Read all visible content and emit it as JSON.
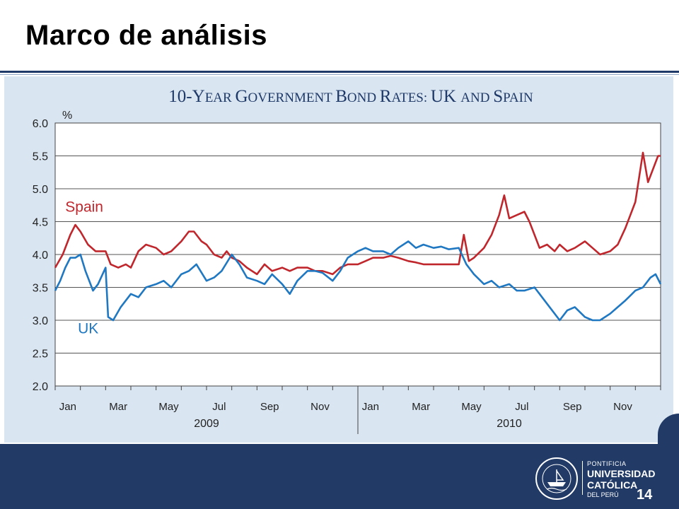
{
  "slide": {
    "title": "Marco de análisis",
    "page_number": "14"
  },
  "logo": {
    "seal_text": "ET LUX IN TENEBRIS LUCET",
    "line1": "PONTIFICIA",
    "line2": "UNIVERSIDAD",
    "line3": "CATÓLICA",
    "line4": "DEL PERÚ"
  },
  "colors": {
    "spain": "#c0272d",
    "uk": "#1f78c1",
    "title_blue": "#1f3a68",
    "panel": "#d9e5f1",
    "footer": "#213a66"
  },
  "chart_data": {
    "type": "line",
    "title_parts": [
      {
        "big": "10-Y",
        "small": "EAR "
      },
      {
        "big": "G",
        "small": "OVERNMENT "
      },
      {
        "big": "B",
        "small": "OND "
      },
      {
        "big": "R",
        "small": "ATES: "
      },
      {
        "big": "UK ",
        "small": "AND "
      },
      {
        "big": "S",
        "small": "PAIN"
      }
    ],
    "ylabel": "%",
    "ylim": [
      2.0,
      6.0
    ],
    "yticks": [
      "2.0",
      "2.5",
      "3.0",
      "3.5",
      "4.0",
      "4.5",
      "5.0",
      "5.5",
      "6.0"
    ],
    "grid": true,
    "x_range": [
      0,
      24
    ],
    "month_ticks": [
      {
        "label": "Jan",
        "x": 0.5
      },
      {
        "label": "Mar",
        "x": 2.5
      },
      {
        "label": "May",
        "x": 4.5
      },
      {
        "label": "Jul",
        "x": 6.5
      },
      {
        "label": "Sep",
        "x": 8.5
      },
      {
        "label": "Nov",
        "x": 10.5
      },
      {
        "label": "Jan",
        "x": 12.5
      },
      {
        "label": "Mar",
        "x": 14.5
      },
      {
        "label": "May",
        "x": 16.5
      },
      {
        "label": "Jul",
        "x": 18.5
      },
      {
        "label": "Sep",
        "x": 20.5
      },
      {
        "label": "Nov",
        "x": 22.5
      }
    ],
    "years": [
      {
        "label": "2009",
        "x": 6.0
      },
      {
        "label": "2010",
        "x": 18.0
      }
    ],
    "year_divider_x": 12.0,
    "series": [
      {
        "name": "Spain",
        "label_pos": {
          "x": 0.4,
          "y": 4.65
        },
        "points": [
          [
            0,
            3.8
          ],
          [
            0.3,
            4.0
          ],
          [
            0.6,
            4.3
          ],
          [
            0.8,
            4.45
          ],
          [
            1.0,
            4.35
          ],
          [
            1.3,
            4.15
          ],
          [
            1.6,
            4.05
          ],
          [
            2.0,
            4.05
          ],
          [
            2.2,
            3.85
          ],
          [
            2.5,
            3.8
          ],
          [
            2.8,
            3.85
          ],
          [
            3.0,
            3.8
          ],
          [
            3.3,
            4.05
          ],
          [
            3.6,
            4.15
          ],
          [
            4.0,
            4.1
          ],
          [
            4.3,
            4.0
          ],
          [
            4.6,
            4.05
          ],
          [
            5.0,
            4.2
          ],
          [
            5.3,
            4.35
          ],
          [
            5.5,
            4.35
          ],
          [
            5.8,
            4.2
          ],
          [
            6.0,
            4.15
          ],
          [
            6.3,
            4.0
          ],
          [
            6.6,
            3.95
          ],
          [
            6.8,
            4.05
          ],
          [
            7.0,
            3.95
          ],
          [
            7.3,
            3.9
          ],
          [
            7.6,
            3.8
          ],
          [
            8.0,
            3.7
          ],
          [
            8.3,
            3.85
          ],
          [
            8.6,
            3.75
          ],
          [
            9.0,
            3.8
          ],
          [
            9.3,
            3.75
          ],
          [
            9.6,
            3.8
          ],
          [
            10.0,
            3.8
          ],
          [
            10.3,
            3.75
          ],
          [
            10.6,
            3.75
          ],
          [
            11.0,
            3.7
          ],
          [
            11.3,
            3.8
          ],
          [
            11.6,
            3.85
          ],
          [
            12.0,
            3.85
          ],
          [
            12.3,
            3.9
          ],
          [
            12.6,
            3.95
          ],
          [
            13.0,
            3.95
          ],
          [
            13.3,
            3.98
          ],
          [
            13.6,
            3.95
          ],
          [
            14.0,
            3.9
          ],
          [
            14.3,
            3.88
          ],
          [
            14.6,
            3.85
          ],
          [
            15.0,
            3.85
          ],
          [
            15.3,
            3.85
          ],
          [
            15.6,
            3.85
          ],
          [
            16.0,
            3.85
          ],
          [
            16.2,
            4.3
          ],
          [
            16.4,
            3.9
          ],
          [
            16.6,
            3.95
          ],
          [
            17.0,
            4.1
          ],
          [
            17.3,
            4.3
          ],
          [
            17.6,
            4.6
          ],
          [
            17.8,
            4.9
          ],
          [
            18.0,
            4.55
          ],
          [
            18.3,
            4.6
          ],
          [
            18.6,
            4.65
          ],
          [
            18.8,
            4.5
          ],
          [
            19.0,
            4.3
          ],
          [
            19.2,
            4.1
          ],
          [
            19.5,
            4.15
          ],
          [
            19.8,
            4.05
          ],
          [
            20.0,
            4.15
          ],
          [
            20.3,
            4.05
          ],
          [
            20.6,
            4.1
          ],
          [
            21.0,
            4.2
          ],
          [
            21.3,
            4.1
          ],
          [
            21.6,
            4.0
          ],
          [
            22.0,
            4.05
          ],
          [
            22.3,
            4.15
          ],
          [
            22.6,
            4.4
          ],
          [
            23.0,
            4.8
          ],
          [
            23.3,
            5.55
          ],
          [
            23.5,
            5.1
          ],
          [
            23.7,
            5.3
          ],
          [
            23.9,
            5.5
          ],
          [
            24.0,
            5.5
          ]
        ]
      },
      {
        "name": "UK",
        "label_pos": {
          "x": 0.9,
          "y": 2.8
        },
        "points": [
          [
            0,
            3.45
          ],
          [
            0.2,
            3.6
          ],
          [
            0.4,
            3.8
          ],
          [
            0.6,
            3.95
          ],
          [
            0.8,
            3.95
          ],
          [
            1.0,
            4.0
          ],
          [
            1.2,
            3.75
          ],
          [
            1.5,
            3.45
          ],
          [
            1.7,
            3.55
          ],
          [
            2.0,
            3.8
          ],
          [
            2.1,
            3.05
          ],
          [
            2.3,
            3.0
          ],
          [
            2.6,
            3.2
          ],
          [
            3.0,
            3.4
          ],
          [
            3.3,
            3.35
          ],
          [
            3.6,
            3.5
          ],
          [
            4.0,
            3.55
          ],
          [
            4.3,
            3.6
          ],
          [
            4.6,
            3.5
          ],
          [
            5.0,
            3.7
          ],
          [
            5.3,
            3.75
          ],
          [
            5.6,
            3.85
          ],
          [
            6.0,
            3.6
          ],
          [
            6.3,
            3.65
          ],
          [
            6.6,
            3.75
          ],
          [
            7.0,
            4.0
          ],
          [
            7.3,
            3.85
          ],
          [
            7.6,
            3.65
          ],
          [
            8.0,
            3.6
          ],
          [
            8.3,
            3.55
          ],
          [
            8.6,
            3.7
          ],
          [
            9.0,
            3.55
          ],
          [
            9.3,
            3.4
          ],
          [
            9.6,
            3.6
          ],
          [
            10.0,
            3.75
          ],
          [
            10.3,
            3.75
          ],
          [
            10.6,
            3.72
          ],
          [
            11.0,
            3.6
          ],
          [
            11.3,
            3.75
          ],
          [
            11.6,
            3.95
          ],
          [
            12.0,
            4.05
          ],
          [
            12.3,
            4.1
          ],
          [
            12.6,
            4.05
          ],
          [
            13.0,
            4.05
          ],
          [
            13.3,
            4.0
          ],
          [
            13.6,
            4.1
          ],
          [
            14.0,
            4.2
          ],
          [
            14.3,
            4.1
          ],
          [
            14.6,
            4.15
          ],
          [
            15.0,
            4.1
          ],
          [
            15.3,
            4.12
          ],
          [
            15.6,
            4.08
          ],
          [
            16.0,
            4.1
          ],
          [
            16.3,
            3.85
          ],
          [
            16.6,
            3.7
          ],
          [
            17.0,
            3.55
          ],
          [
            17.3,
            3.6
          ],
          [
            17.6,
            3.5
          ],
          [
            18.0,
            3.55
          ],
          [
            18.3,
            3.45
          ],
          [
            18.6,
            3.45
          ],
          [
            19.0,
            3.5
          ],
          [
            19.3,
            3.35
          ],
          [
            19.6,
            3.2
          ],
          [
            20.0,
            3.0
          ],
          [
            20.3,
            3.15
          ],
          [
            20.6,
            3.2
          ],
          [
            21.0,
            3.05
          ],
          [
            21.3,
            3.0
          ],
          [
            21.6,
            3.0
          ],
          [
            22.0,
            3.1
          ],
          [
            22.3,
            3.2
          ],
          [
            22.6,
            3.3
          ],
          [
            23.0,
            3.45
          ],
          [
            23.3,
            3.5
          ],
          [
            23.6,
            3.65
          ],
          [
            23.8,
            3.7
          ],
          [
            24.0,
            3.55
          ]
        ]
      }
    ]
  }
}
